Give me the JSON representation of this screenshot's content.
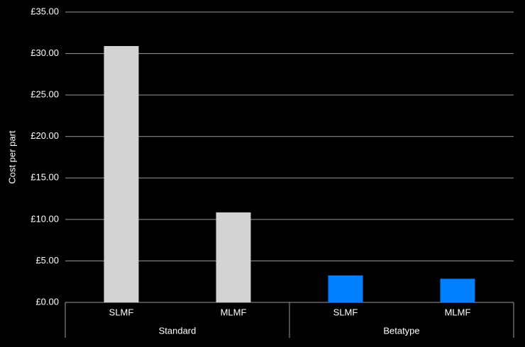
{
  "chart_data": {
    "type": "bar",
    "ylabel": "Cost per part",
    "groups": [
      {
        "name": "Standard",
        "categories": [
          "SLMF",
          "MLMF"
        ],
        "values": [
          30.9,
          10.85
        ],
        "color": "#d3d3d3"
      },
      {
        "name": "Betatype",
        "categories": [
          "SLMF",
          "MLMF"
        ],
        "values": [
          3.25,
          2.85
        ],
        "color": "#0080ff"
      }
    ],
    "ylim": [
      0,
      35
    ],
    "yticks": [
      {
        "value": 0,
        "label": "£0.00"
      },
      {
        "value": 5,
        "label": "£5.00"
      },
      {
        "value": 10,
        "label": "£10.00"
      },
      {
        "value": 15,
        "label": "£15.00"
      },
      {
        "value": 20,
        "label": "£20.00"
      },
      {
        "value": 25,
        "label": "£25.00"
      },
      {
        "value": 30,
        "label": "£30.00"
      },
      {
        "value": 35,
        "label": "£35.00"
      }
    ],
    "grid": true
  }
}
